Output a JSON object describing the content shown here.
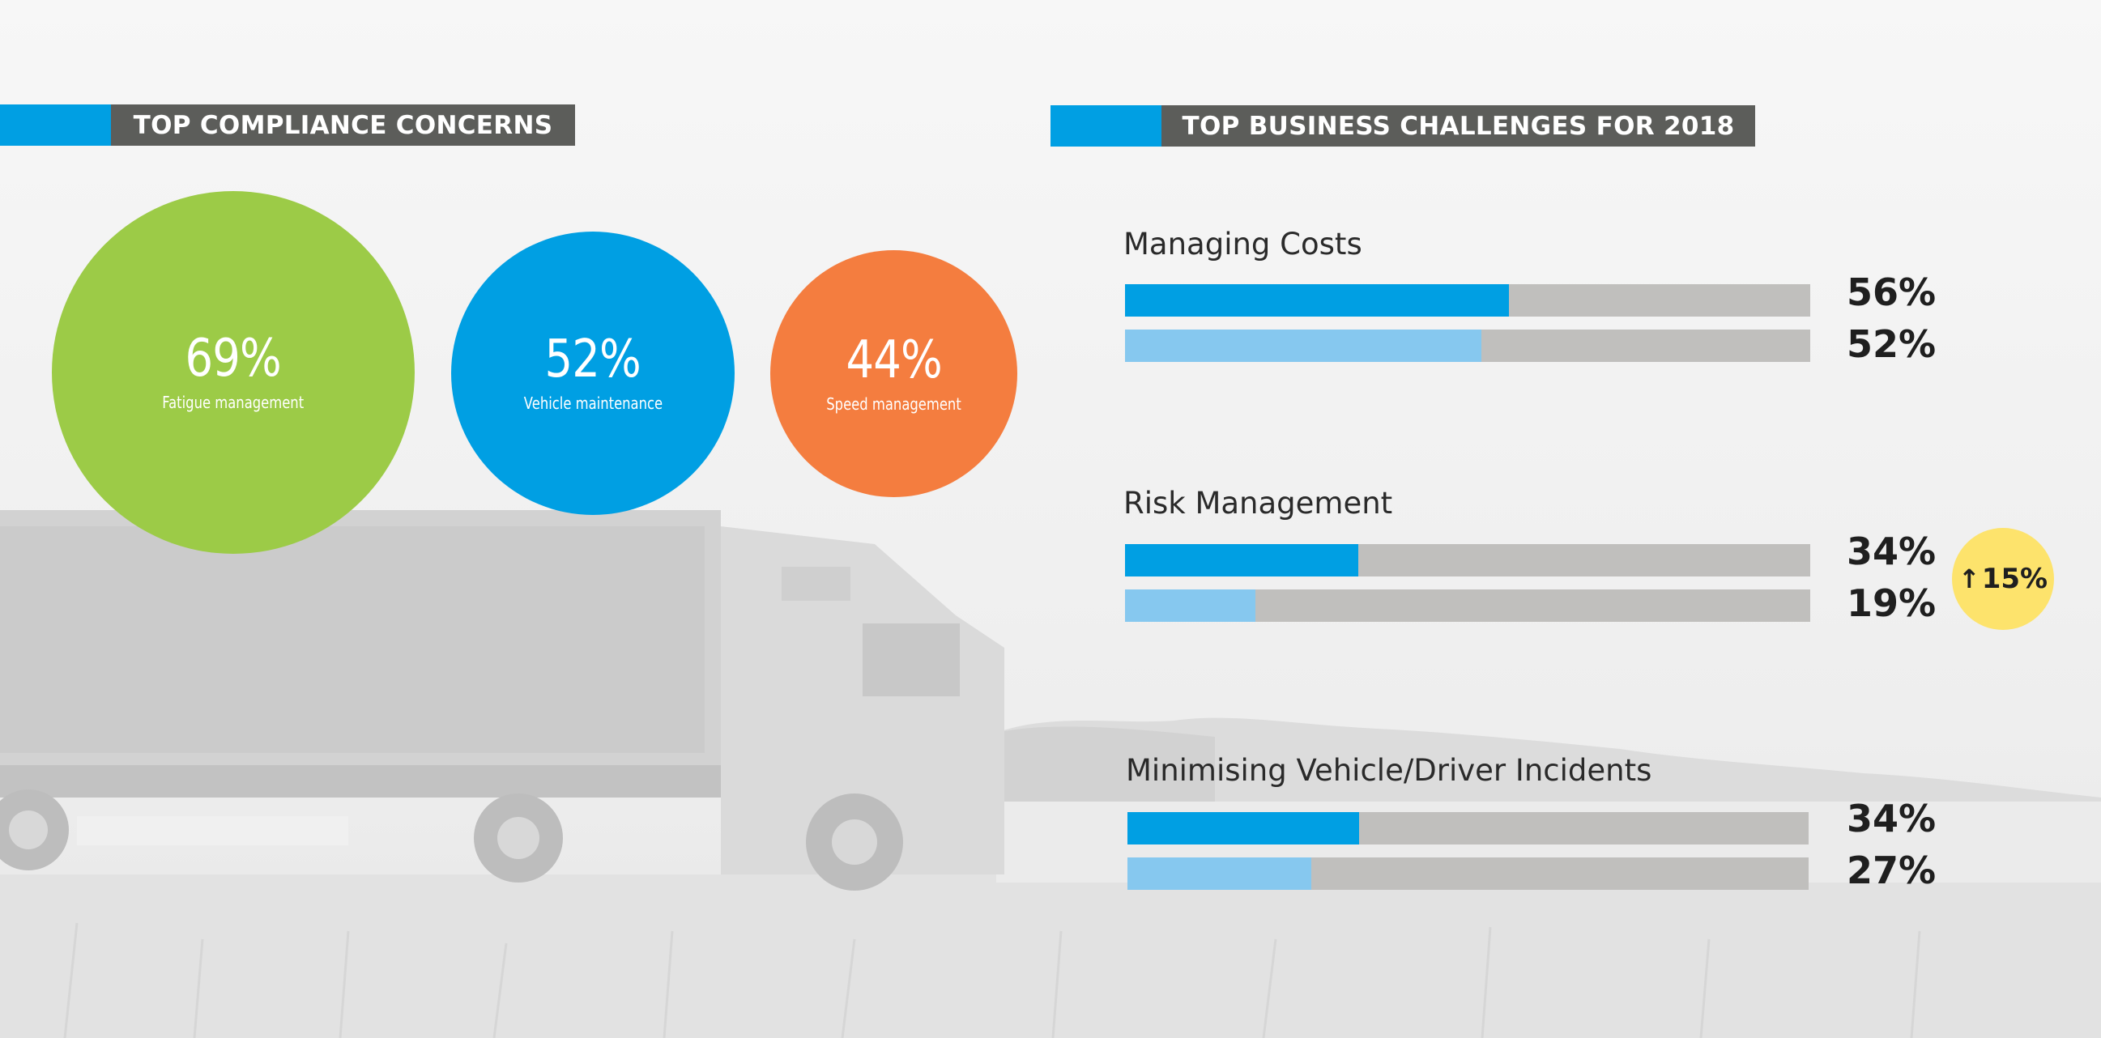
{
  "compliance": {
    "title": "TOP COMPLIANCE CONCERNS",
    "items": [
      {
        "value": 69,
        "label": "69%",
        "caption": "Fatigue management",
        "color": "#9ccb47"
      },
      {
        "value": 52,
        "label": "52%",
        "caption": "Vehicle maintenance",
        "color": "#009fe3"
      },
      {
        "value": 44,
        "label": "44%",
        "caption": "Speed management",
        "color": "#f47d3f"
      }
    ]
  },
  "business": {
    "title": "TOP BUSINESS CHALLENGES FOR 2018",
    "groups": [
      {
        "title": "Managing Costs",
        "bars": [
          {
            "value": 56,
            "label": "56%",
            "kind": "primary"
          },
          {
            "value": 52,
            "label": "52%",
            "kind": "secondary"
          }
        ]
      },
      {
        "title": "Risk Management",
        "bars": [
          {
            "value": 34,
            "label": "34%",
            "kind": "primary"
          },
          {
            "value": 19,
            "label": "19%",
            "kind": "secondary"
          }
        ],
        "badge": {
          "label": "15%",
          "icon": "arrow-up-icon"
        }
      },
      {
        "title": "Minimising Vehicle/Driver Incidents",
        "bars": [
          {
            "value": 34,
            "label": "34%",
            "kind": "primary"
          },
          {
            "value": 27,
            "label": "27%",
            "kind": "secondary"
          }
        ]
      }
    ]
  },
  "chart_data": [
    {
      "type": "bubble",
      "title": "TOP COMPLIANCE CONCERNS",
      "categories": [
        "Fatigue management",
        "Vehicle maintenance",
        "Speed management"
      ],
      "values": [
        69,
        52,
        44
      ],
      "unit": "%"
    },
    {
      "type": "bar",
      "orientation": "horizontal",
      "title": "TOP BUSINESS CHALLENGES FOR 2018",
      "categories": [
        "Managing Costs",
        "Risk Management",
        "Minimising Vehicle/Driver Incidents"
      ],
      "series": [
        {
          "values": [
            56,
            34,
            34
          ],
          "color": "#009fe3"
        },
        {
          "values": [
            52,
            19,
            27
          ],
          "color": "#86c8ef"
        }
      ],
      "xlim": [
        0,
        100
      ],
      "unit": "%",
      "annotations": [
        {
          "category": "Risk Management",
          "text": "15%",
          "icon": "arrow-up-icon",
          "color": "#fde36c"
        }
      ]
    }
  ],
  "colors": {
    "accent": "#009fe3",
    "header_bg": "#5c5d5a",
    "track": "#c0bfbd",
    "light_bar": "#86c8ef",
    "badge": "#fde36c"
  }
}
